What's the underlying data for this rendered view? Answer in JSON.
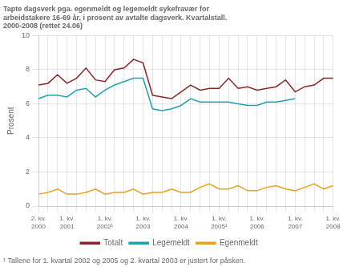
{
  "chart_data": {
    "type": "line",
    "title": "Tapte dagsverk pga. egenmeldt og legemeldt sykefravær for\narbeidstakere 16-69 år, i prosent av avtalte dagsverk. Kvartalstall.\n2000-2008 (rettet 24.06)",
    "y_label": "Prosent",
    "annotations": [
      "¹ Tallene for 1. kvartal 2002 og 2005 og 2. kvartal 2003 er justert for påsken."
    ],
    "categories": [
      "2. kv.\n2000",
      null,
      null,
      "1. kv.\n2001",
      null,
      null,
      null,
      "1. kv.\n2002¹",
      null,
      null,
      null,
      "1. kv.\n2003",
      null,
      null,
      null,
      "1. kv.\n2004",
      null,
      null,
      null,
      "1. kv.\n2005¹",
      null,
      null,
      null,
      "1. kv.\n2006",
      null,
      null,
      null,
      "1. kv.\n2007",
      null,
      null,
      null,
      "1. kv.\n2008"
    ],
    "series": [
      {
        "name": "Totalt",
        "color": "#8B2525",
        "values": [
          7.1,
          7.2,
          7.7,
          7.2,
          7.5,
          8.1,
          7.4,
          7.3,
          8.0,
          8.1,
          8.6,
          8.4,
          6.5,
          6.4,
          6.3,
          6.7,
          7.1,
          6.8,
          6.9,
          6.9,
          7.5,
          6.9,
          7.0,
          6.8,
          6.9,
          7.0,
          7.4,
          6.7,
          7.0,
          7.1,
          7.5,
          7.5
        ]
      },
      {
        "name": "Legemeldt",
        "color": "#20A0B0",
        "values": [
          6.3,
          6.5,
          6.5,
          6.4,
          6.8,
          6.9,
          6.4,
          6.8,
          7.1,
          7.3,
          7.5,
          7.5,
          5.7,
          5.6,
          5.7,
          5.9,
          6.3,
          6.1,
          6.1,
          6.1,
          6.1,
          6.0,
          5.9,
          5.9,
          6.1,
          6.1,
          6.2,
          6.3,
          null,
          null,
          null,
          null
        ]
      },
      {
        "name": "Egenmeldt",
        "color": "#E8A020",
        "values": [
          0.7,
          0.8,
          1.0,
          0.7,
          0.7,
          0.8,
          1.0,
          0.7,
          0.8,
          0.8,
          1.0,
          0.7,
          0.8,
          0.8,
          1.0,
          0.8,
          0.8,
          1.1,
          1.3,
          1.0,
          1.0,
          1.2,
          0.9,
          0.9,
          1.1,
          1.2,
          1.0,
          0.9,
          1.1,
          1.3,
          1.0,
          1.2
        ]
      }
    ],
    "ylim": [
      0,
      10
    ],
    "yticks": [
      0,
      2,
      4,
      6,
      8,
      10
    ],
    "grid": true,
    "legend": "bottom"
  }
}
